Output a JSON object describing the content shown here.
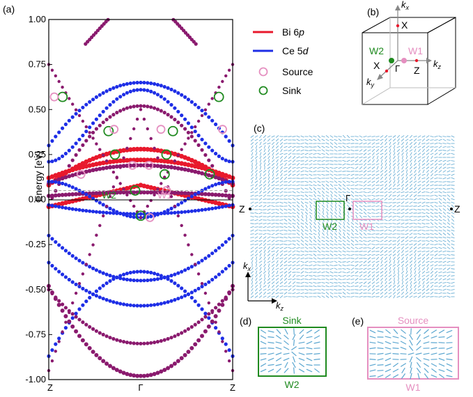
{
  "panel_labels": {
    "a": "(a)",
    "b": "(b)",
    "c": "(c)",
    "d": "(d)",
    "e": "(e)"
  },
  "colors": {
    "bi": "#e8192c",
    "ce": "#1e2ee6",
    "mixed": "#8a1a6e",
    "source": "#e58fc0",
    "sink": "#1f8a1f",
    "fermi": "#000000",
    "dashed": "#999999",
    "arrows": "#5aa6d0"
  },
  "legend": {
    "bi_prefix": "Bi 6",
    "bi_orb": "p",
    "ce_prefix": "Ce 5",
    "ce_orb": "d",
    "source": "Source",
    "sink": "Sink"
  },
  "panel_b": {
    "kx": "k",
    "kx_sub": "x",
    "ky": "k",
    "ky_sub": "y",
    "kz": "k",
    "kz_sub": "z",
    "X_top": "X",
    "X_left": "X",
    "Z": "Z",
    "Gamma": "Γ",
    "W1": "W1",
    "W2": "W2"
  },
  "panel_c": {
    "Z_left": "Z",
    "Z_right": "Z",
    "Gamma": "Γ",
    "W2": "W2",
    "W1": "W1",
    "kx": "k",
    "kx_sub": "x",
    "kz": "k",
    "kz_sub": "z"
  },
  "panel_d": {
    "title": "Sink",
    "bottom": "W2"
  },
  "panel_e": {
    "title": "Source",
    "bottom": "W1"
  },
  "chart_data": {
    "type": "band structure",
    "ylabel": "Energy [eV]",
    "ylim": [
      -1.0,
      1.0
    ],
    "yticks": [
      "-1.00",
      "-0.75",
      "-0.50",
      "-0.25",
      "0.00",
      "0.25",
      "0.50",
      "0.75",
      "1.00"
    ],
    "xticks": [
      "Z",
      "Γ",
      "Z"
    ],
    "fermi_level": 0.0,
    "dashed_level": 0.05,
    "sink_points": [
      [
        -0.85,
        0.57
      ],
      [
        -0.35,
        0.38
      ],
      [
        0.35,
        0.38
      ],
      [
        0.85,
        0.57
      ],
      [
        -0.28,
        0.25
      ],
      [
        0.28,
        0.25
      ],
      [
        0.26,
        0.14
      ],
      [
        0.75,
        0.14
      ],
      [
        -0.06,
        0.05
      ],
      [
        0.0,
        -0.09
      ]
    ],
    "source_points": [
      [
        -0.94,
        0.57
      ],
      [
        -0.29,
        0.39
      ],
      [
        0.22,
        0.39
      ],
      [
        0.89,
        0.39
      ],
      [
        -0.65,
        0.14
      ],
      [
        -0.09,
        0.19
      ],
      [
        0.09,
        0.19
      ],
      [
        0.28,
        0.05
      ],
      [
        0.1,
        -0.1
      ]
    ],
    "labels": {
      "W2": "W2",
      "W1": "W1"
    }
  }
}
